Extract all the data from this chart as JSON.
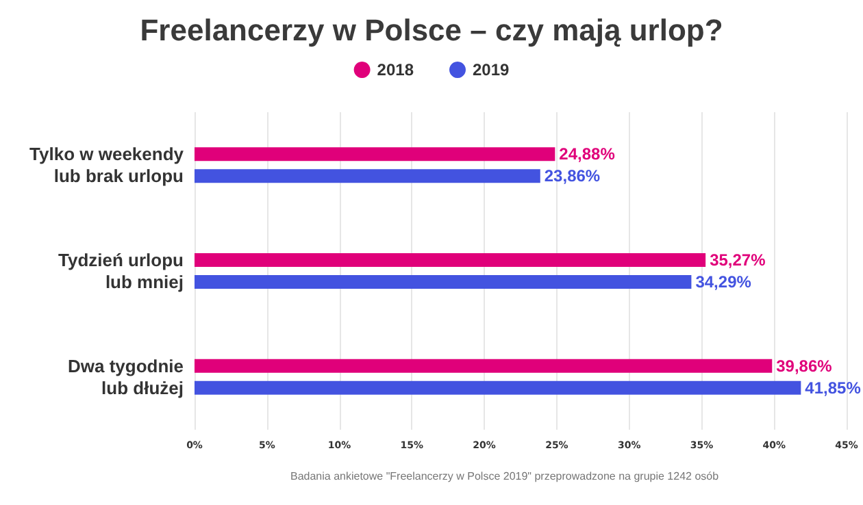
{
  "chart_data": {
    "type": "bar",
    "orientation": "horizontal",
    "title": "Freelancerzy w Polsce – czy mają urlop?",
    "categories": [
      "Tylko w weekendy\nlub brak urlopu",
      "Tydzień urlopu\nlub mniej",
      "Dwa tygodnie\nlub dłużej"
    ],
    "series": [
      {
        "name": "2018",
        "color": "#e0007a",
        "values": [
          24.88,
          35.27,
          39.86
        ],
        "value_labels": [
          "24,88%",
          "35,27%",
          "39,86%"
        ]
      },
      {
        "name": "2019",
        "color": "#4353e0",
        "values": [
          23.86,
          34.29,
          41.85
        ],
        "value_labels": [
          "23,86%",
          "34,29%",
          "41,85%"
        ]
      }
    ],
    "xlim": [
      0,
      45
    ],
    "xticks": [
      {
        "value": 0,
        "label": "0%"
      },
      {
        "value": 5,
        "label": "5%"
      },
      {
        "value": 10,
        "label": "10%"
      },
      {
        "value": 15,
        "label": "15%"
      },
      {
        "value": 20,
        "label": "20%"
      },
      {
        "value": 25,
        "label": "25%"
      },
      {
        "value": 30,
        "label": "30%"
      },
      {
        "value": 35,
        "label": "35%"
      },
      {
        "value": 40,
        "label": "40%"
      },
      {
        "value": 45,
        "label": "45%"
      }
    ],
    "grid": "x",
    "legend": "top",
    "annotations": [
      "Badania ankietowe \"Freelancerzy w Polsce 2019\" przeprowadzone na grupie 1242 osób"
    ]
  }
}
